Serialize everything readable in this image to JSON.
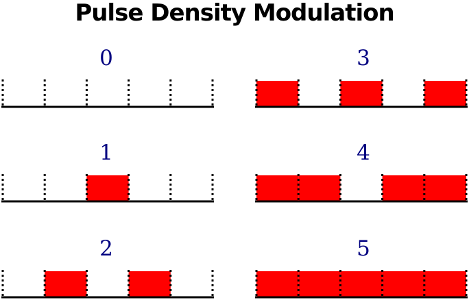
{
  "title": "Pulse Density Modulation",
  "colors": {
    "pulse": "#ff0000",
    "label": "#000080",
    "line": "#000000"
  },
  "panels": [
    {
      "label": "0",
      "pulses": [
        0,
        0,
        0,
        0,
        0
      ]
    },
    {
      "label": "1",
      "pulses": [
        0,
        0,
        1,
        0,
        0
      ]
    },
    {
      "label": "2",
      "pulses": [
        0,
        1,
        0,
        1,
        0
      ]
    },
    {
      "label": "3",
      "pulses": [
        1,
        0,
        1,
        0,
        1
      ]
    },
    {
      "label": "4",
      "pulses": [
        1,
        1,
        0,
        1,
        1
      ]
    },
    {
      "label": "5",
      "pulses": [
        1,
        1,
        1,
        1,
        1
      ]
    }
  ]
}
